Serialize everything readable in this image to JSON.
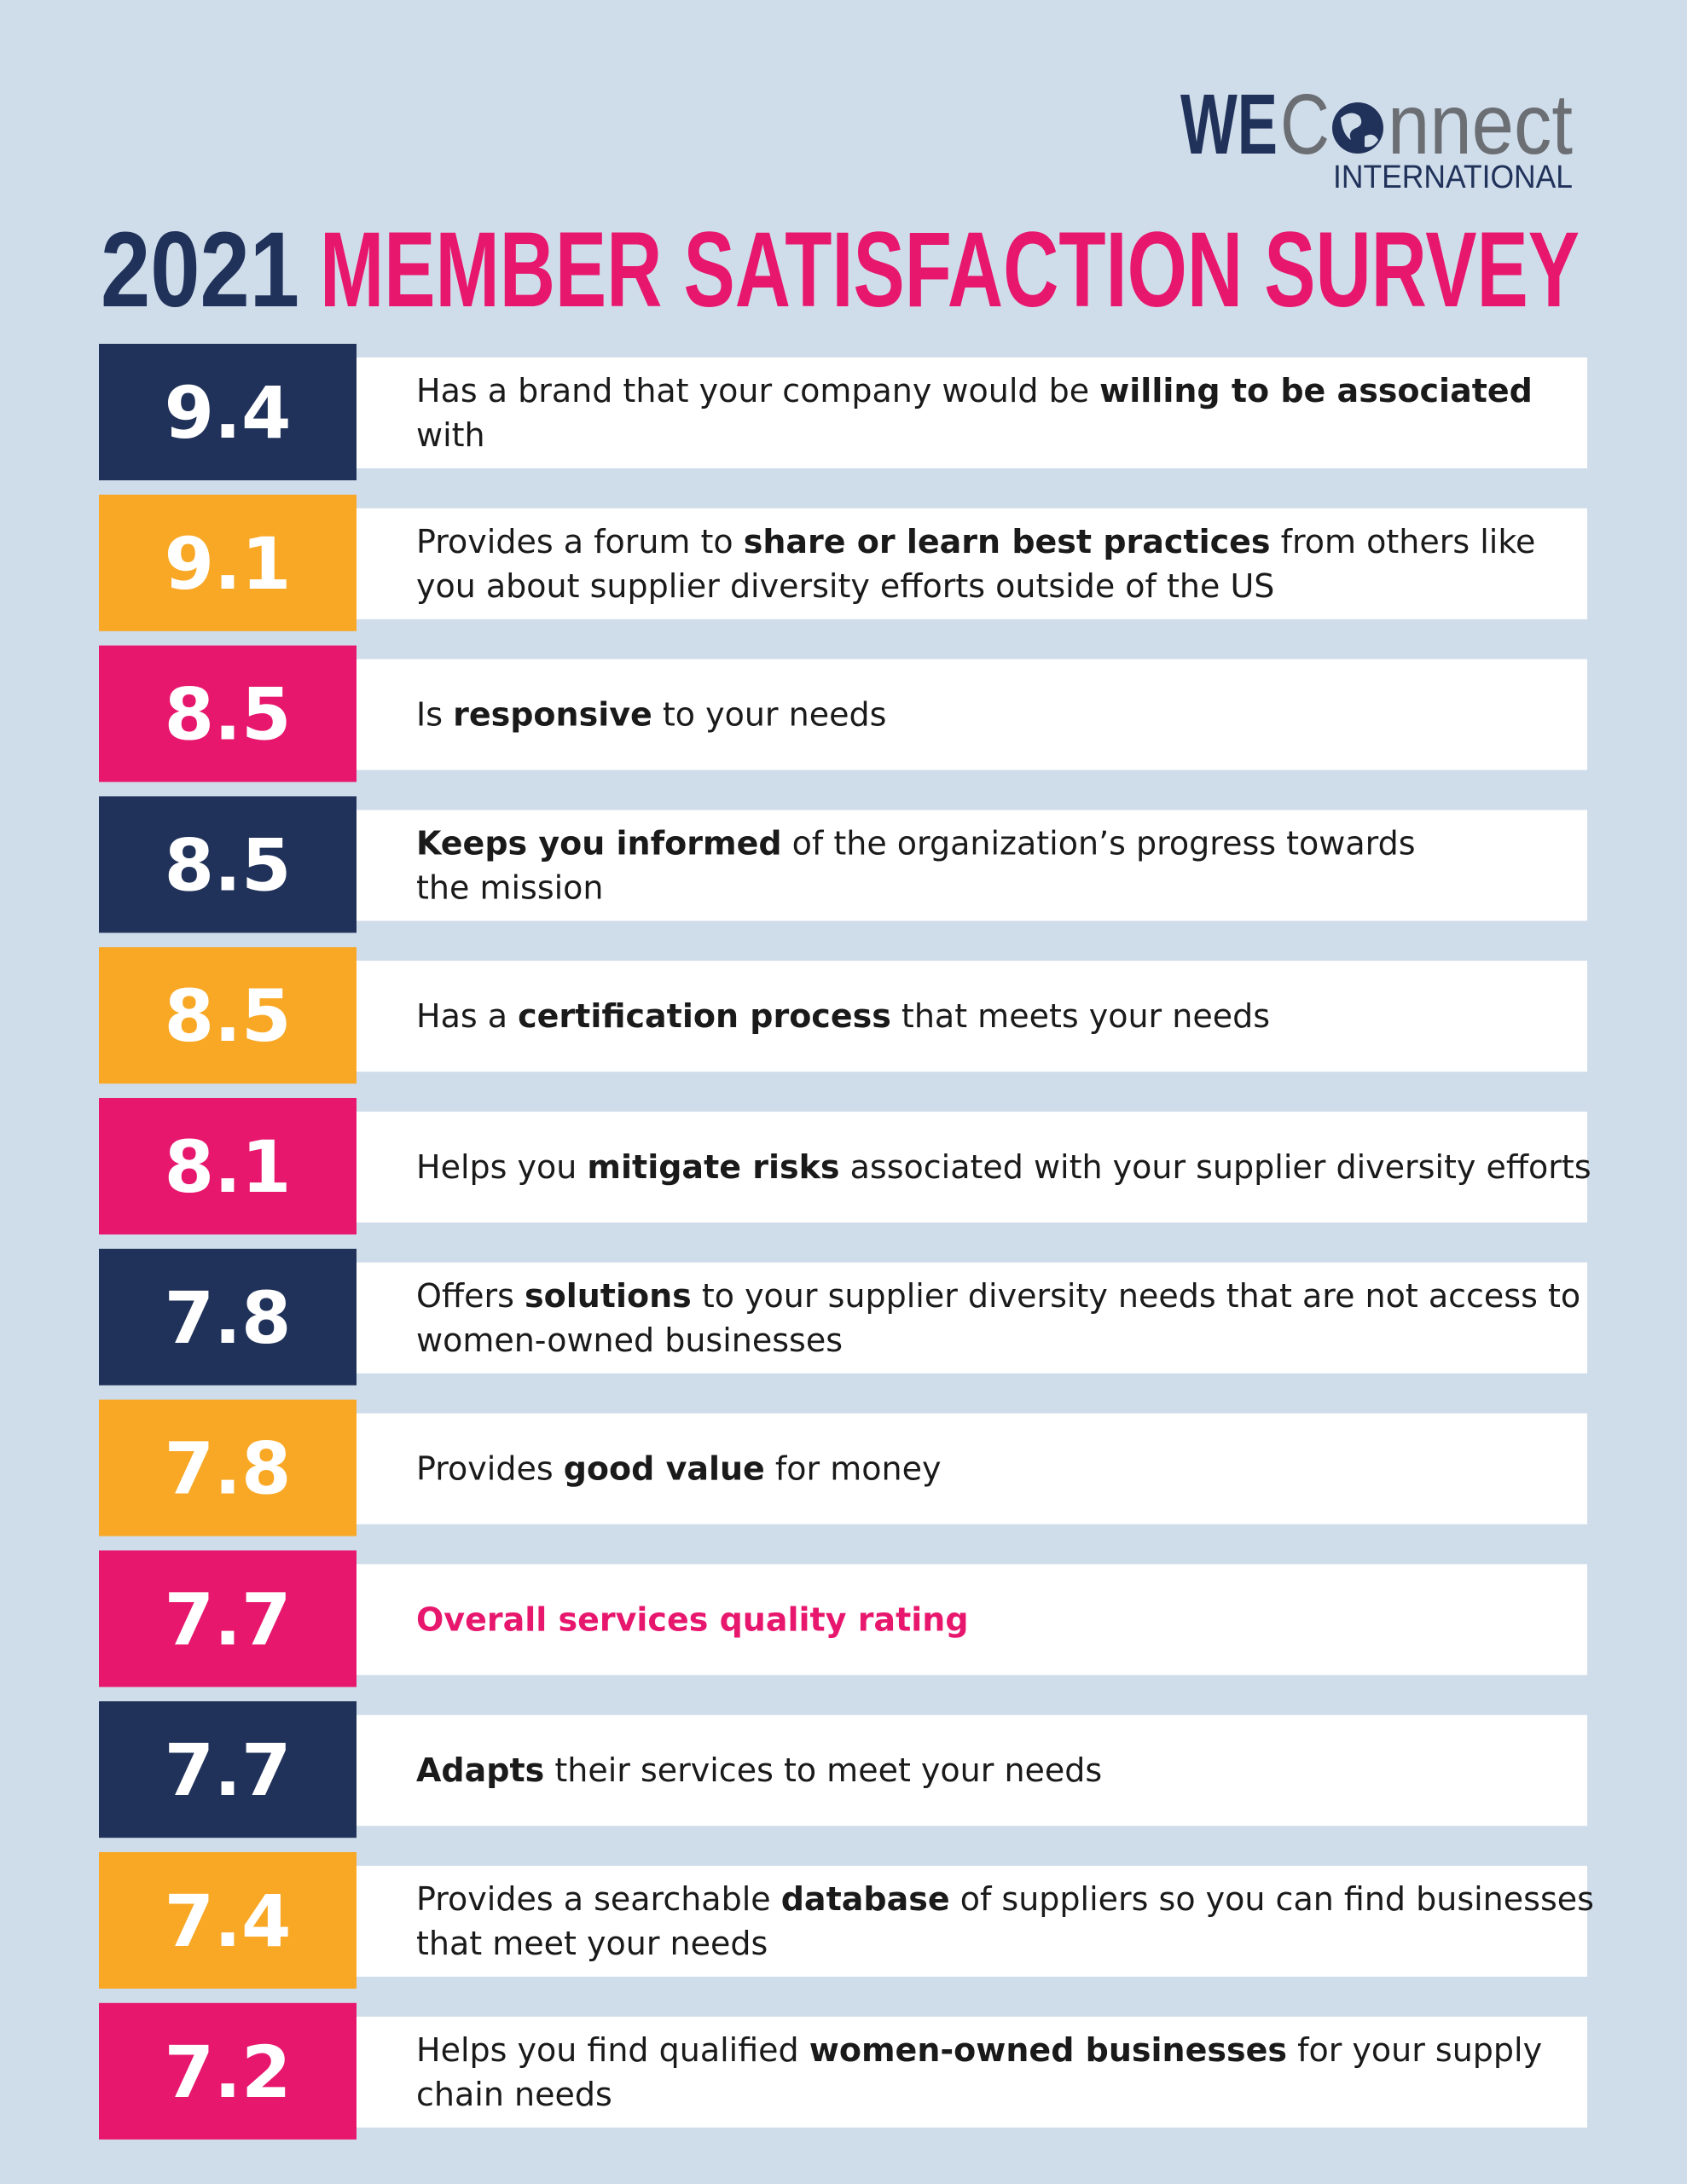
{
  "logo": {
    "we": "WE",
    "c": "C",
    "nnect": "nnect",
    "sub": "INTERNATIONAL"
  },
  "title": {
    "year": "2021",
    "text": "MEMBER SATISFACTION SURVEY"
  },
  "items": [
    {
      "score": "9.4",
      "color": "#20325a",
      "lines": [
        [
          {
            "text": "Has a brand that your company would be ",
            "bold": false
          },
          {
            "text": "willing to be associated",
            "bold": true
          }
        ],
        [
          {
            "text": "with",
            "bold": false
          }
        ]
      ]
    },
    {
      "score": "9.1",
      "color": "#f9a826",
      "lines": [
        [
          {
            "text": "Provides a forum to ",
            "bold": false
          },
          {
            "text": "share or learn best practices",
            "bold": true
          },
          {
            "text": " from others like",
            "bold": false
          }
        ],
        [
          {
            "text": "you about supplier diversity efforts outside of the US",
            "bold": false
          }
        ]
      ]
    },
    {
      "score": "8.5",
      "color": "#e8176e",
      "lines": [
        [
          {
            "text": "Is ",
            "bold": false
          },
          {
            "text": "responsive",
            "bold": true
          },
          {
            "text": " to your needs",
            "bold": false
          }
        ]
      ]
    },
    {
      "score": "8.5",
      "color": "#20325a",
      "lines": [
        [
          {
            "text": "Keeps you informed",
            "bold": true
          },
          {
            "text": " of the organization’s progress towards",
            "bold": false
          }
        ],
        [
          {
            "text": "the mission",
            "bold": false
          }
        ]
      ]
    },
    {
      "score": "8.5",
      "color": "#f9a826",
      "lines": [
        [
          {
            "text": "Has a ",
            "bold": false
          },
          {
            "text": "certification process",
            "bold": true
          },
          {
            "text": " that meets your needs",
            "bold": false
          }
        ]
      ]
    },
    {
      "score": "8.1",
      "color": "#e8176e",
      "lines": [
        [
          {
            "text": "Helps you ",
            "bold": false
          },
          {
            "text": "mitigate risks",
            "bold": true
          },
          {
            "text": " associated with your supplier diversity efforts",
            "bold": false
          }
        ]
      ]
    },
    {
      "score": "7.8",
      "color": "#20325a",
      "lines": [
        [
          {
            "text": "Offers ",
            "bold": false
          },
          {
            "text": "solutions",
            "bold": true
          },
          {
            "text": " to your supplier diversity needs that are not access to",
            "bold": false
          }
        ],
        [
          {
            "text": "women-owned businesses",
            "bold": false
          }
        ]
      ]
    },
    {
      "score": "7.8",
      "color": "#f9a826",
      "lines": [
        [
          {
            "text": "Provides ",
            "bold": false
          },
          {
            "text": "good value",
            "bold": true
          },
          {
            "text": " for money",
            "bold": false
          }
        ]
      ]
    },
    {
      "score": "7.7",
      "color": "#e8176e",
      "lines": [
        [
          {
            "text": "Overall services quality rating",
            "bold": true,
            "color": "#e8176e"
          }
        ]
      ]
    },
    {
      "score": "7.7",
      "color": "#20325a",
      "lines": [
        [
          {
            "text": "Adapts",
            "bold": true
          },
          {
            "text": " their services to meet your needs",
            "bold": false
          }
        ]
      ]
    },
    {
      "score": "7.4",
      "color": "#f9a826",
      "lines": [
        [
          {
            "text": "Provides a searchable ",
            "bold": false
          },
          {
            "text": "database",
            "bold": true
          },
          {
            "text": " of suppliers so you can find businesses",
            "bold": false
          }
        ],
        [
          {
            "text": "that meet your needs",
            "bold": false
          }
        ]
      ]
    },
    {
      "score": "7.2",
      "color": "#e8176e",
      "lines": [
        [
          {
            "text": "Helps you find qualified ",
            "bold": false
          },
          {
            "text": "women-owned businesses",
            "bold": true
          },
          {
            "text": " for your supply",
            "bold": false
          }
        ],
        [
          {
            "text": "chain needs",
            "bold": false
          }
        ]
      ]
    }
  ]
}
